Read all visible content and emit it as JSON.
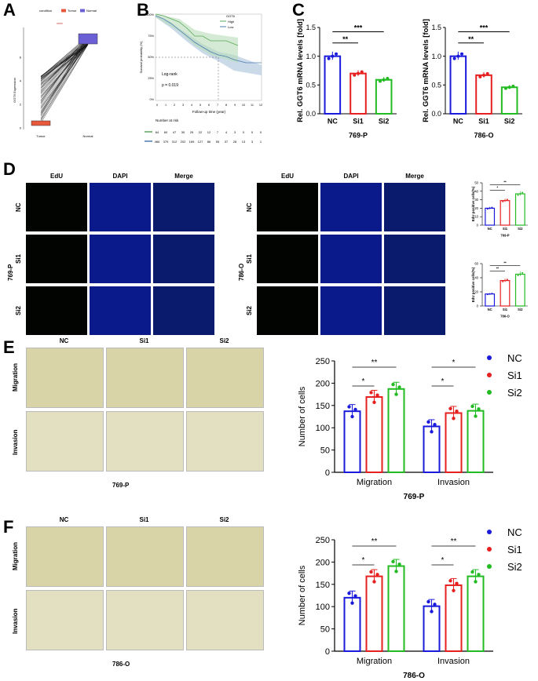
{
  "panels": {
    "A": "A",
    "B": "B",
    "C": "C",
    "D": "D",
    "E": "E",
    "F": "F"
  },
  "colors": {
    "NC": "#1a1adb",
    "Si1": "#e62020",
    "Si2": "#22bb22",
    "tumor": "#e8583c",
    "normal": "#6b5fd6",
    "high": "#5aa85a",
    "low": "#4a7bb0"
  },
  "panelA": {
    "legend_title": "condition",
    "legend_items": [
      "Tumor",
      "Normal"
    ],
    "significance": "****",
    "ylabel": "GGT6 Expression",
    "yticks": [
      "0",
      "2",
      "4",
      "6"
    ],
    "xticks": [
      "Tumor",
      "Normal"
    ]
  },
  "panelB": {
    "legend_title": "GGT6",
    "legend_items": [
      "High",
      "Low"
    ],
    "ylabel": "Survival probability (%)",
    "xlabel": "Follow-up time (year)",
    "yticks": [
      "100%",
      "75%",
      "50%",
      "25%",
      "0%"
    ],
    "xticks": [
      "0",
      "1",
      "2",
      "3",
      "4",
      "5",
      "6",
      "7",
      "8",
      "9",
      "10",
      "11",
      "12"
    ],
    "logrank": "Log-rank",
    "pvalue": "p = 0.019",
    "risk_title": "Number at risk",
    "risk_high": [
      "64",
      "60",
      "47",
      "30",
      "29",
      "22",
      "12",
      "7",
      "4",
      "3",
      "0",
      "0",
      "0"
    ],
    "risk_low": [
      "466",
      "379",
      "312",
      "202",
      "169",
      "127",
      "86",
      "55",
      "37",
      "28",
      "13",
      "3",
      "1"
    ]
  },
  "chart_data": [
    {
      "type": "bar",
      "title": "769-P",
      "ylabel": "Rel. GGT6 mRNA levels [fold]",
      "categories": [
        "NC",
        "Si1",
        "Si2"
      ],
      "values": [
        1.0,
        0.7,
        0.59
      ],
      "ylim": [
        0,
        1.5
      ],
      "yticks": [
        "0.0",
        "0.5",
        "1.0",
        "1.5"
      ],
      "sig": [
        {
          "label": "**"
        },
        {
          "label": "***"
        }
      ]
    },
    {
      "type": "bar",
      "title": "786-O",
      "ylabel": "Rel. GGT6 mRNA levels [fold]",
      "categories": [
        "NC",
        "Si1",
        "Si2"
      ],
      "values": [
        1.0,
        0.67,
        0.46
      ],
      "ylim": [
        0,
        1.5
      ],
      "yticks": [
        "0.0",
        "0.5",
        "1.0",
        "1.5"
      ],
      "sig": [
        {
          "label": "**"
        },
        {
          "label": "***"
        }
      ]
    },
    {
      "type": "bar",
      "title": "769-P",
      "ylabel": "EdU positive cells(%)",
      "categories": [
        "NC",
        "Si1",
        "Si2"
      ],
      "values": [
        20,
        29,
        37
      ],
      "ylim": [
        0,
        50
      ],
      "yticks": [
        "0",
        "10",
        "20",
        "30",
        "40",
        "50"
      ],
      "sig": [
        {
          "label": "*"
        },
        {
          "label": "**"
        }
      ]
    },
    {
      "type": "bar",
      "title": "786-O",
      "ylabel": "EdU positive cells(%)",
      "categories": [
        "NC",
        "Si1",
        "Si2"
      ],
      "values": [
        17,
        36,
        45
      ],
      "ylim": [
        0,
        60
      ],
      "yticks": [
        "0",
        "20",
        "40",
        "60"
      ],
      "sig": [
        {
          "label": "**"
        },
        {
          "label": "**"
        }
      ]
    },
    {
      "type": "bar",
      "title": "769-P",
      "ylabel": "Number of cells",
      "groups": [
        "Migration",
        "Invasion"
      ],
      "series": [
        {
          "name": "NC",
          "values": [
            137,
            103
          ]
        },
        {
          "name": "Si1",
          "values": [
            169,
            133
          ]
        },
        {
          "name": "Si2",
          "values": [
            187,
            138
          ]
        }
      ],
      "ylim": [
        0,
        250
      ],
      "yticks": [
        "0",
        "50",
        "100",
        "150",
        "200",
        "250"
      ],
      "sig": [
        {
          "label": "*"
        },
        {
          "label": "**"
        },
        {
          "label": "*"
        },
        {
          "label": "*"
        }
      ]
    },
    {
      "type": "bar",
      "title": "786-O",
      "ylabel": "Number of cells",
      "groups": [
        "Migration",
        "Invasion"
      ],
      "series": [
        {
          "name": "NC",
          "values": [
            120,
            101
          ]
        },
        {
          "name": "Si1",
          "values": [
            168,
            148
          ]
        },
        {
          "name": "Si2",
          "values": [
            191,
            168
          ]
        }
      ],
      "ylim": [
        0,
        250
      ],
      "yticks": [
        "0",
        "50",
        "100",
        "150",
        "200",
        "250"
      ],
      "sig": [
        {
          "label": "*"
        },
        {
          "label": "**"
        },
        {
          "label": "*"
        },
        {
          "label": "**"
        }
      ]
    }
  ],
  "panelD": {
    "col_titles": [
      "EdU",
      "DAPI",
      "Merge"
    ],
    "row_titles": [
      "NC",
      "Si1",
      "Si2"
    ],
    "cell_left": "769-P",
    "cell_right": "786-O"
  },
  "panelE": {
    "col_titles": [
      "NC",
      "Si1",
      "Si2"
    ],
    "row_titles": [
      "Migration",
      "Invasion"
    ],
    "cell": "769-P"
  },
  "panelF": {
    "col_titles": [
      "NC",
      "Si1",
      "Si2"
    ],
    "row_titles": [
      "Migration",
      "Invasion"
    ],
    "cell": "786-O"
  },
  "legend": [
    "NC",
    "Si1",
    "Si2"
  ]
}
